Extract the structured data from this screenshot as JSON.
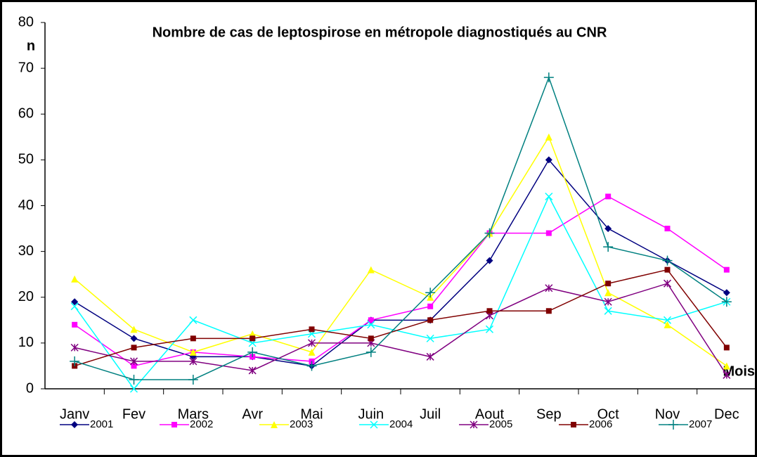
{
  "chart_data": {
    "type": "line",
    "title": "Nombre de cas de leptospirose en métropole diagnostiqués au CNR",
    "y_label": "n",
    "x_label": "Mois",
    "categories": [
      "Janv",
      "Fev",
      "Mars",
      "Avr",
      "Mai",
      "Juin",
      "Juil",
      "Aout",
      "Sep",
      "Oct",
      "Nov",
      "Dec"
    ],
    "ylim": [
      0,
      80
    ],
    "yticks": [
      0,
      10,
      20,
      30,
      40,
      50,
      60,
      70,
      80
    ],
    "grid": false,
    "legend": "bottom",
    "series": [
      {
        "name": "2001",
        "color": "#000080",
        "marker": "diamond",
        "values": [
          19,
          11,
          7,
          7,
          5,
          15,
          15,
          28,
          50,
          35,
          28,
          21
        ]
      },
      {
        "name": "2002",
        "color": "#ff00ff",
        "marker": "square",
        "values": [
          14,
          5,
          8,
          7,
          6,
          15,
          18,
          34,
          34,
          42,
          35,
          26
        ]
      },
      {
        "name": "2003",
        "color": "#ffff00",
        "marker": "triangle",
        "values": [
          24,
          13,
          8,
          12,
          8,
          26,
          20,
          34,
          55,
          21,
          14,
          5
        ]
      },
      {
        "name": "2004",
        "color": "#00ffff",
        "marker": "x",
        "values": [
          18,
          0,
          15,
          10,
          12,
          14,
          11,
          13,
          42,
          17,
          15,
          19
        ]
      },
      {
        "name": "2005",
        "color": "#800080",
        "marker": "star",
        "values": [
          9,
          6,
          6,
          4,
          10,
          10,
          7,
          16,
          22,
          19,
          23,
          3
        ]
      },
      {
        "name": "2006",
        "color": "#800000",
        "marker": "square",
        "values": [
          5,
          9,
          11,
          11,
          13,
          11,
          15,
          17,
          17,
          23,
          26,
          9
        ]
      },
      {
        "name": "2007",
        "color": "#008080",
        "marker": "plus",
        "values": [
          6,
          2,
          2,
          8,
          5,
          8,
          21,
          34,
          68,
          31,
          28,
          19
        ]
      }
    ]
  }
}
